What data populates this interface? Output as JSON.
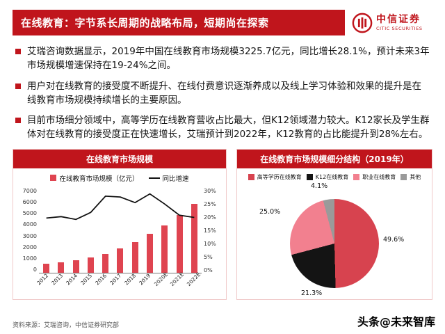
{
  "header": {
    "title": "在线教育：字节系长周期的战略布局，短期尚在探索",
    "logo_cn": "中信证券",
    "logo_en": "CITIC SECURITIES"
  },
  "bullets": [
    "艾瑞咨询数据显示，2019年中国在线教育市场规模3225.7亿元，同比增长28.1%，预计未来3年市场规模增速保持在19-24%之间。",
    "用户对在线教育的接受度不断提升、在线付费意识逐渐养成以及线上学习体验和效果的提升是在线教育市场规模持续增长的主要原因。",
    "目前市场细分领域中，高等学历在线教育营收占比最大，但K12领域潜力较大。K12家长及学生群体对在线教育的接受度正在快速增长，艾瑞预计到2022年，K12教育的占比能提升到28%左右。"
  ],
  "chart_data": [
    {
      "type": "bar",
      "title": "在线教育市场规模",
      "categories": [
        "2012",
        "2013",
        "2014",
        "2015",
        "2016",
        "2017",
        "2018",
        "2019",
        "2020E",
        "2021E",
        "2022E"
      ],
      "series": [
        {
          "name": "在线教育市场规模（亿元）",
          "type": "bar",
          "values": [
            700,
            840,
            1030,
            1230,
            1560,
            2000,
            2520,
            3226,
            3900,
            4800,
            5700
          ]
        },
        {
          "name": "同比增速",
          "type": "line",
          "values": [
            19.5,
            20.0,
            19.0,
            21.5,
            27.3,
            27.0,
            25.0,
            28.1,
            24.5,
            20.5,
            19.7
          ]
        }
      ],
      "y_left": {
        "min": 0,
        "max": 7000,
        "ticks": [
          "7000",
          "6000",
          "5000",
          "4000",
          "3000",
          "2000",
          "1000",
          "0"
        ]
      },
      "y_right": {
        "min": 0,
        "max": 30,
        "ticks": [
          "30%",
          "25%",
          "20%",
          "15%",
          "10%",
          "5%",
          "0%"
        ]
      },
      "legend_position": "top",
      "grid": false
    },
    {
      "type": "pie",
      "title": "在线教育市场规模细分结构（2019年）",
      "slices": [
        {
          "label": "高等学历在线教育",
          "value": 49.6,
          "color": "#d7434f"
        },
        {
          "label": "K12在线教育",
          "value": 21.3,
          "color": "#141414"
        },
        {
          "label": "职业在线教育",
          "value": 25.0,
          "color": "#f2808f"
        },
        {
          "label": "其他",
          "value": 4.1,
          "color": "#9a9a9a"
        }
      ],
      "legend_position": "top"
    }
  ],
  "footer": {
    "source": "资料来源：艾瑞咨询，中信证券研究部",
    "watermark": "头条@未来智库"
  },
  "colors": {
    "primary_red": "#c0151c",
    "bar_red": "#df4450",
    "panel_border": "#f0c9c9"
  }
}
